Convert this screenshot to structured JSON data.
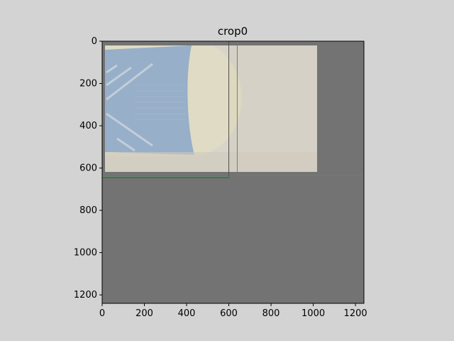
{
  "chart_data": {
    "type": "image",
    "title": "crop0",
    "xlabel": "",
    "ylabel": "",
    "xlim": [
      0,
      1240
    ],
    "ylim": [
      1240,
      0
    ],
    "x_ticks": [
      0,
      200,
      400,
      600,
      800,
      1000,
      1200
    ],
    "y_ticks": [
      0,
      200,
      400,
      600,
      800,
      1000,
      1200
    ],
    "grid": false,
    "colors": {
      "figure_background": "#d3d3d3",
      "image_background": "#737373",
      "photo_paper": "#d6d1c6",
      "sock_blue": "#8fa9c4",
      "sock_cream": "#ddd8c0",
      "line_green": "#5f8a6a",
      "line_dark": "#4f4f4f"
    },
    "photo_region": {
      "x0": 15,
      "x1": 1020,
      "y0": 20,
      "y1": 620
    },
    "overlay_lines": [
      {
        "name": "dark-horizontal-line",
        "x": [
          0,
          600
        ],
        "y": [
          645,
          645
        ],
        "color": "#4f4f4f"
      },
      {
        "name": "dark-vertical-line",
        "x": [
          600,
          600
        ],
        "y": [
          0,
          645
        ],
        "color": "#4f4f4f"
      },
      {
        "name": "green-horizontal-line",
        "x": [
          640,
          1240
        ],
        "y": [
          635,
          635
        ],
        "color": "#5f8a6a"
      },
      {
        "name": "green-vertical-line",
        "x": [
          640,
          640
        ],
        "y": [
          0,
          635
        ],
        "color": "#5f8a6a"
      },
      {
        "name": "green-horizontal-line-left",
        "x": [
          0,
          600
        ],
        "y": [
          640,
          640
        ],
        "color": "#5f8a6a"
      }
    ]
  }
}
